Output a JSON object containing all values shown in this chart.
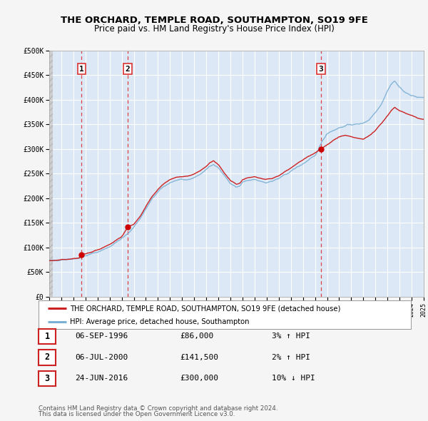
{
  "title": "THE ORCHARD, TEMPLE ROAD, SOUTHAMPTON, SO19 9FE",
  "subtitle": "Price paid vs. HM Land Registry's House Price Index (HPI)",
  "xmin": 1994,
  "xmax": 2025,
  "ymin": 0,
  "ymax": 500000,
  "yticks": [
    0,
    50000,
    100000,
    150000,
    200000,
    250000,
    300000,
    350000,
    400000,
    450000,
    500000
  ],
  "ytick_labels": [
    "£0",
    "£50K",
    "£100K",
    "£150K",
    "£200K",
    "£250K",
    "£300K",
    "£350K",
    "£400K",
    "£450K",
    "£500K"
  ],
  "background_color": "#f5f5f5",
  "plot_bg_color": "#dce8f5",
  "hatch_color": "#c8c8c8",
  "grid_color": "#ffffff",
  "hpi_color": "#7bafd4",
  "price_color": "#cc2222",
  "marker_color": "#cc0000",
  "vline_color": "#dd3333",
  "legend_label_price": "THE ORCHARD, TEMPLE ROAD, SOUTHAMPTON, SO19 9FE (detached house)",
  "legend_label_hpi": "HPI: Average price, detached house, Southampton",
  "transactions": [
    {
      "num": 1,
      "date_str": "06-SEP-1996",
      "year": 1996.68,
      "price": 86000,
      "pct": "3%",
      "dir": "↑"
    },
    {
      "num": 2,
      "date_str": "06-JUL-2000",
      "year": 2000.51,
      "price": 141500,
      "pct": "2%",
      "dir": "↑"
    },
    {
      "num": 3,
      "date_str": "24-JUN-2016",
      "year": 2016.48,
      "price": 300000,
      "pct": "10%",
      "dir": "↓"
    }
  ],
  "hpi_keypts": [
    [
      1994.0,
      73000
    ],
    [
      1994.5,
      74000
    ],
    [
      1995.0,
      75500
    ],
    [
      1995.5,
      76500
    ],
    [
      1996.0,
      77500
    ],
    [
      1996.5,
      79000
    ],
    [
      1997.0,
      83000
    ],
    [
      1997.5,
      87000
    ],
    [
      1998.0,
      91000
    ],
    [
      1998.5,
      96000
    ],
    [
      1999.0,
      102000
    ],
    [
      1999.5,
      110000
    ],
    [
      2000.0,
      118000
    ],
    [
      2000.5,
      128000
    ],
    [
      2001.0,
      142000
    ],
    [
      2001.5,
      158000
    ],
    [
      2002.0,
      178000
    ],
    [
      2002.5,
      198000
    ],
    [
      2003.0,
      213000
    ],
    [
      2003.5,
      224000
    ],
    [
      2004.0,
      232000
    ],
    [
      2004.5,
      236000
    ],
    [
      2005.0,
      237000
    ],
    [
      2005.5,
      238000
    ],
    [
      2006.0,
      242000
    ],
    [
      2006.5,
      249000
    ],
    [
      2007.0,
      258000
    ],
    [
      2007.3,
      265000
    ],
    [
      2007.6,
      270000
    ],
    [
      2008.0,
      262000
    ],
    [
      2008.5,
      246000
    ],
    [
      2009.0,
      230000
    ],
    [
      2009.5,
      222000
    ],
    [
      2009.8,
      225000
    ],
    [
      2010.0,
      232000
    ],
    [
      2010.5,
      236000
    ],
    [
      2011.0,
      238000
    ],
    [
      2011.5,
      235000
    ],
    [
      2012.0,
      232000
    ],
    [
      2012.5,
      235000
    ],
    [
      2013.0,
      240000
    ],
    [
      2013.5,
      247000
    ],
    [
      2014.0,
      255000
    ],
    [
      2014.5,
      263000
    ],
    [
      2015.0,
      270000
    ],
    [
      2015.5,
      278000
    ],
    [
      2016.0,
      285000
    ],
    [
      2016.5,
      312000
    ],
    [
      2017.0,
      332000
    ],
    [
      2017.5,
      338000
    ],
    [
      2018.0,
      343000
    ],
    [
      2018.5,
      347000
    ],
    [
      2019.0,
      350000
    ],
    [
      2019.5,
      350000
    ],
    [
      2020.0,
      353000
    ],
    [
      2020.5,
      360000
    ],
    [
      2021.0,
      375000
    ],
    [
      2021.5,
      392000
    ],
    [
      2022.0,
      418000
    ],
    [
      2022.3,
      432000
    ],
    [
      2022.6,
      438000
    ],
    [
      2023.0,
      425000
    ],
    [
      2023.5,
      415000
    ],
    [
      2024.0,
      408000
    ],
    [
      2024.5,
      405000
    ],
    [
      2025.0,
      405000
    ]
  ],
  "price_keypts": [
    [
      1994.0,
      73000
    ],
    [
      1994.5,
      74000
    ],
    [
      1995.0,
      75500
    ],
    [
      1995.5,
      76500
    ],
    [
      1996.0,
      77500
    ],
    [
      1996.5,
      79000
    ],
    [
      1996.68,
      86000
    ],
    [
      1997.0,
      87500
    ],
    [
      1997.5,
      91000
    ],
    [
      1998.0,
      95000
    ],
    [
      1998.5,
      100000
    ],
    [
      1999.0,
      106000
    ],
    [
      1999.5,
      114000
    ],
    [
      2000.0,
      122000
    ],
    [
      2000.51,
      141500
    ],
    [
      2001.0,
      148000
    ],
    [
      2001.5,
      163000
    ],
    [
      2002.0,
      183000
    ],
    [
      2002.5,
      203000
    ],
    [
      2003.0,
      218000
    ],
    [
      2003.5,
      230000
    ],
    [
      2004.0,
      238000
    ],
    [
      2004.5,
      243000
    ],
    [
      2005.0,
      244000
    ],
    [
      2005.5,
      245000
    ],
    [
      2006.0,
      249000
    ],
    [
      2006.5,
      256000
    ],
    [
      2007.0,
      265000
    ],
    [
      2007.3,
      272000
    ],
    [
      2007.6,
      276000
    ],
    [
      2008.0,
      268000
    ],
    [
      2008.5,
      252000
    ],
    [
      2009.0,
      236000
    ],
    [
      2009.5,
      228000
    ],
    [
      2009.8,
      231000
    ],
    [
      2010.0,
      238000
    ],
    [
      2010.5,
      242000
    ],
    [
      2011.0,
      244000
    ],
    [
      2011.5,
      241000
    ],
    [
      2012.0,
      238000
    ],
    [
      2012.5,
      241000
    ],
    [
      2013.0,
      246000
    ],
    [
      2013.5,
      254000
    ],
    [
      2014.0,
      262000
    ],
    [
      2014.5,
      270000
    ],
    [
      2015.0,
      278000
    ],
    [
      2015.5,
      286000
    ],
    [
      2016.0,
      293000
    ],
    [
      2016.48,
      300000
    ],
    [
      2017.0,
      308000
    ],
    [
      2017.5,
      318000
    ],
    [
      2018.0,
      325000
    ],
    [
      2018.5,
      328000
    ],
    [
      2019.0,
      325000
    ],
    [
      2019.5,
      322000
    ],
    [
      2020.0,
      320000
    ],
    [
      2020.5,
      328000
    ],
    [
      2021.0,
      338000
    ],
    [
      2021.5,
      352000
    ],
    [
      2022.0,
      368000
    ],
    [
      2022.3,
      378000
    ],
    [
      2022.6,
      385000
    ],
    [
      2023.0,
      378000
    ],
    [
      2023.5,
      372000
    ],
    [
      2024.0,
      368000
    ],
    [
      2024.5,
      362000
    ],
    [
      2025.0,
      360000
    ]
  ],
  "footnote1": "Contains HM Land Registry data © Crown copyright and database right 2024.",
  "footnote2": "This data is licensed under the Open Government Licence v3.0."
}
